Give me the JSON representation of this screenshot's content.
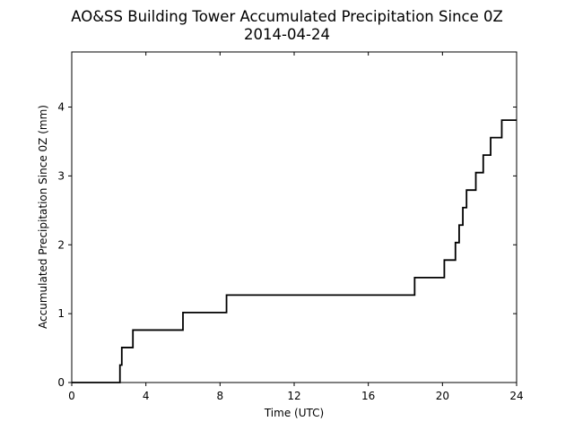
{
  "chart_data": {
    "type": "line",
    "title": "AO&SS Building Tower Accumulated Precipitation Since 0Z",
    "subtitle": "2014-04-24",
    "xlabel": "Time (UTC)",
    "ylabel": "Accumulated Precipitation Since 0Z (mm)",
    "xlim": [
      0,
      24
    ],
    "ylim": [
      0,
      4.8
    ],
    "xticks": [
      "0",
      "4",
      "8",
      "12",
      "16",
      "20",
      "24"
    ],
    "yticks": [
      "0",
      "1",
      "2",
      "3",
      "4"
    ],
    "grid": false,
    "line_color": "#000000",
    "step": true,
    "x": [
      0,
      2.5,
      2.6,
      2.7,
      3.3,
      6.0,
      8.35,
      18.5,
      20.1,
      20.7,
      20.9,
      21.1,
      21.3,
      21.8,
      22.2,
      22.6,
      23.2,
      24
    ],
    "y": [
      0,
      0,
      0.254,
      0.508,
      0.762,
      1.016,
      1.27,
      1.524,
      1.778,
      2.032,
      2.286,
      2.54,
      2.794,
      3.048,
      3.302,
      3.556,
      3.81,
      3.81
    ]
  }
}
